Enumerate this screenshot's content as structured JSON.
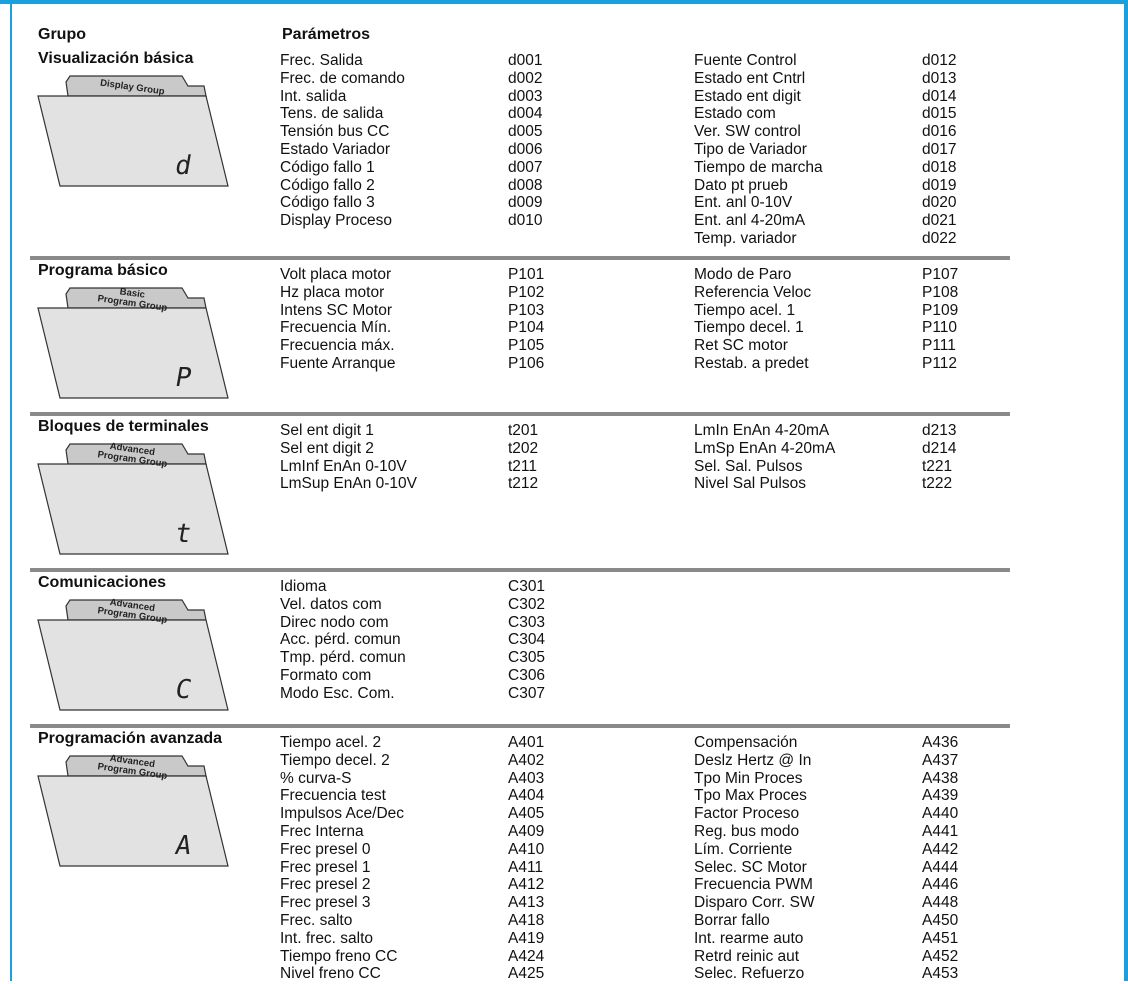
{
  "header": {
    "grupo": "Grupo",
    "parametros": "Parámetros"
  },
  "sections": [
    {
      "title": "Visualización básica",
      "folder_label": [
        "Display Group"
      ],
      "folder_glyph": "d",
      "left": [
        {
          "name": "Frec. Salida",
          "code": "d001"
        },
        {
          "name": "Frec. de comando",
          "code": "d002"
        },
        {
          "name": "Int. salida",
          "code": "d003"
        },
        {
          "name": "Tens. de salida",
          "code": "d004"
        },
        {
          "name": "Tensión bus CC",
          "code": "d005"
        },
        {
          "name": "Estado Variador",
          "code": "d006"
        },
        {
          "name": "Código fallo 1",
          "code": "d007"
        },
        {
          "name": "Código fallo 2",
          "code": "d008"
        },
        {
          "name": "Código fallo 3",
          "code": "d009"
        },
        {
          "name": "Display Proceso",
          "code": "d010"
        }
      ],
      "right": [
        {
          "name": "Fuente Control",
          "code": "d012"
        },
        {
          "name": "Estado ent Cntrl",
          "code": "d013"
        },
        {
          "name": "Estado ent digit",
          "code": "d014"
        },
        {
          "name": "Estado com",
          "code": "d015"
        },
        {
          "name": "Ver. SW control",
          "code": "d016"
        },
        {
          "name": "Tipo de Variador",
          "code": "d017"
        },
        {
          "name": "Tiempo de marcha",
          "code": "d018"
        },
        {
          "name": "Dato pt prueb",
          "code": "d019"
        },
        {
          "name": "Ent. anl 0-10V",
          "code": "d020"
        },
        {
          "name": "Ent. anl 4-20mA",
          "code": "d021"
        },
        {
          "name": "Temp. variador",
          "code": "d022"
        }
      ]
    },
    {
      "title": "Programa básico",
      "folder_label": [
        "Basic",
        "Program Group"
      ],
      "folder_glyph": "P",
      "left": [
        {
          "name": "Volt placa motor",
          "code": "P101"
        },
        {
          "name": "Hz placa motor",
          "code": "P102"
        },
        {
          "name": "Intens SC Motor",
          "code": "P103"
        },
        {
          "name": "Frecuencia Mín.",
          "code": "P104"
        },
        {
          "name": "Frecuencia máx.",
          "code": "P105"
        },
        {
          "name": "Fuente Arranque",
          "code": "P106"
        }
      ],
      "right": [
        {
          "name": "Modo de Paro",
          "code": "P107"
        },
        {
          "name": "Referencia Veloc",
          "code": "P108"
        },
        {
          "name": "Tiempo acel. 1",
          "code": "P109"
        },
        {
          "name": "Tiempo decel. 1",
          "code": "P110"
        },
        {
          "name": "Ret SC motor",
          "code": "P111"
        },
        {
          "name": "Restab. a predet",
          "code": "P112"
        }
      ]
    },
    {
      "title": "Bloques de terminales",
      "folder_label": [
        "Advanced",
        "Program Group"
      ],
      "folder_glyph": "t",
      "left": [
        {
          "name": "Sel ent digit 1",
          "code": "t201"
        },
        {
          "name": "Sel ent digit 2",
          "code": "t202"
        },
        {
          "name": "LmInf EnAn 0-10V",
          "code": "t211"
        },
        {
          "name": "LmSup EnAn 0-10V",
          "code": "t212"
        }
      ],
      "right": [
        {
          "name": "LmIn EnAn 4-20mA",
          "code": "d213"
        },
        {
          "name": "LmSp EnAn 4-20mA",
          "code": "d214"
        },
        {
          "name": "Sel. Sal. Pulsos",
          "code": "t221"
        },
        {
          "name": "Nivel Sal Pulsos",
          "code": "t222"
        }
      ]
    },
    {
      "title": "Comunicaciones",
      "folder_label": [
        "Advanced",
        "Program Group"
      ],
      "folder_glyph": "C",
      "left": [
        {
          "name": "Idioma",
          "code": "C301"
        },
        {
          "name": "Vel. datos com",
          "code": "C302"
        },
        {
          "name": "Direc nodo com",
          "code": "C303"
        },
        {
          "name": "Acc. pérd. comun",
          "code": "C304"
        },
        {
          "name": "Tmp. pérd. comun",
          "code": "C305"
        },
        {
          "name": "Formato com",
          "code": "C306"
        },
        {
          "name": "Modo Esc. Com.",
          "code": "C307"
        }
      ],
      "right": []
    },
    {
      "title": "Programación avanzada",
      "folder_label": [
        "Advanced",
        "Program Group"
      ],
      "folder_glyph": "A",
      "left": [
        {
          "name": "Tiempo acel. 2",
          "code": "A401"
        },
        {
          "name": "Tiempo decel. 2",
          "code": "A402"
        },
        {
          "name": "% curva-S",
          "code": "A403"
        },
        {
          "name": "Frecuencia test",
          "code": "A404"
        },
        {
          "name": "Impulsos Ace/Dec",
          "code": "A405"
        },
        {
          "name": "Frec Interna",
          "code": "A409"
        },
        {
          "name": "Frec presel 0",
          "code": "A410"
        },
        {
          "name": "Frec presel 1",
          "code": "A411"
        },
        {
          "name": "Frec presel 2",
          "code": "A412"
        },
        {
          "name": "Frec presel 3",
          "code": "A413"
        },
        {
          "name": "Frec. salto",
          "code": "A418"
        },
        {
          "name": "Int. frec. salto",
          "code": "A419"
        },
        {
          "name": "Tiempo freno CC",
          "code": "A424"
        },
        {
          "name": "Nivel freno CC",
          "code": "A425"
        }
      ],
      "right": [
        {
          "name": "Compensación",
          "code": "A436"
        },
        {
          "name": "Deslz Hertz @ In",
          "code": "A437"
        },
        {
          "name": "Tpo Min Proces",
          "code": "A438"
        },
        {
          "name": "Tpo Max Proces",
          "code": "A439"
        },
        {
          "name": "Factor Proceso",
          "code": "A440"
        },
        {
          "name": "Reg. bus modo",
          "code": "A441"
        },
        {
          "name": "Lím. Corriente",
          "code": "A442"
        },
        {
          "name": "Selec. SC Motor",
          "code": "A444"
        },
        {
          "name": "Frecuencia PWM",
          "code": "A446"
        },
        {
          "name": "Disparo Corr. SW",
          "code": "A448"
        },
        {
          "name": "Borrar fallo",
          "code": "A450"
        },
        {
          "name": "Int. rearme auto",
          "code": "A451"
        },
        {
          "name": "Retrd reinic aut",
          "code": "A452"
        },
        {
          "name": "Selec. Refuerzo",
          "code": "A453"
        }
      ]
    }
  ]
}
